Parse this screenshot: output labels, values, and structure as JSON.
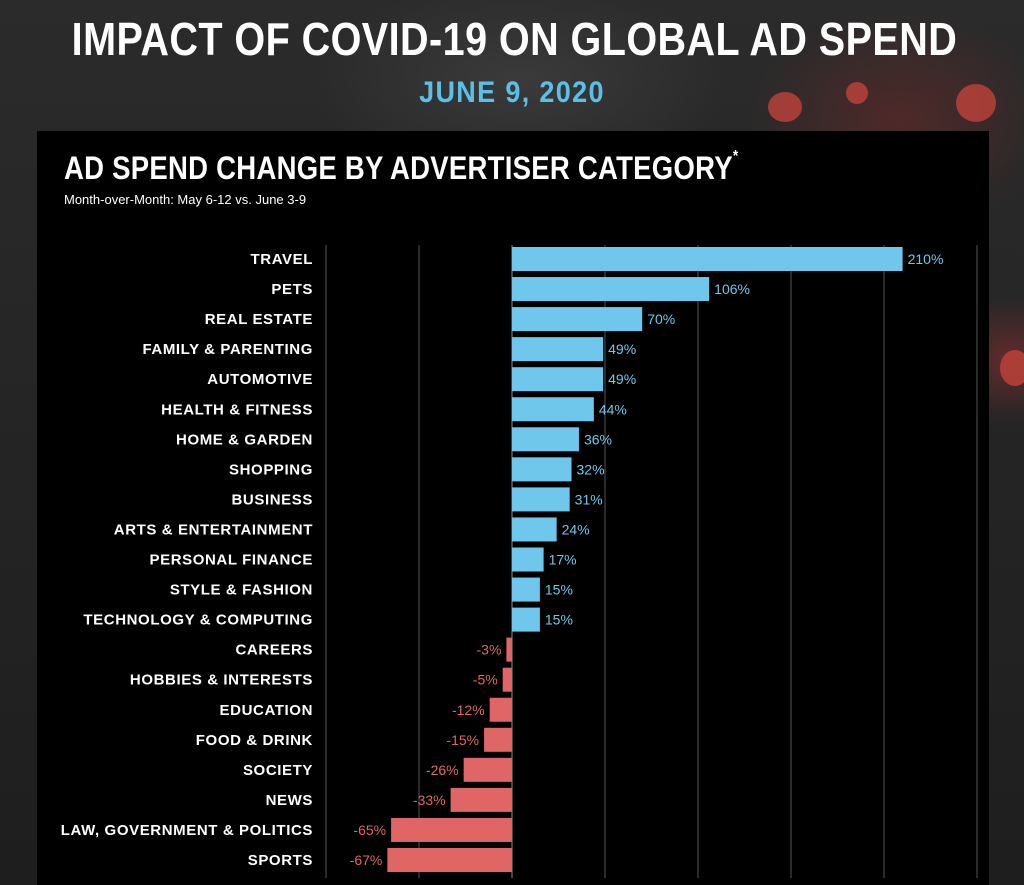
{
  "header": {
    "title": "IMPACT OF COVID-19 ON GLOBAL AD SPEND",
    "date": "JUNE 9, 2020"
  },
  "colors": {
    "positive": "#6fc8ec",
    "negative": "#e06666",
    "title_accent": "#5bc0e8",
    "background": "#000000",
    "gridline": "#555555"
  },
  "chart_data": {
    "type": "bar",
    "orientation": "horizontal",
    "title": "AD SPEND CHANGE BY ADVERTISER CATEGORY",
    "title_mark": "*",
    "subtitle": "Month-over-Month: May 6-12 vs. June 3-9",
    "categories": [
      "TRAVEL",
      "PETS",
      "REAL ESTATE",
      "FAMILY & PARENTING",
      "AUTOMOTIVE",
      "HEALTH & FITNESS",
      "HOME & GARDEN",
      "SHOPPING",
      "BUSINESS",
      "ARTS & ENTERTAINMENT",
      "PERSONAL FINANCE",
      "STYLE & FASHION",
      "TECHNOLOGY & COMPUTING",
      "CAREERS",
      "HOBBIES & INTERESTS",
      "EDUCATION",
      "FOOD & DRINK",
      "SOCIETY",
      "NEWS",
      "LAW, GOVERNMENT & POLITICS",
      "SPORTS"
    ],
    "values": [
      210,
      106,
      70,
      49,
      49,
      44,
      36,
      32,
      31,
      24,
      17,
      15,
      15,
      -3,
      -5,
      -12,
      -15,
      -26,
      -33,
      -65,
      -67
    ],
    "value_labels": [
      "210%",
      "106%",
      "70%",
      "49%",
      "49%",
      "44%",
      "36%",
      "32%",
      "31%",
      "24%",
      "17%",
      "15%",
      "15%",
      "-3%",
      "-5%",
      "-12%",
      "-15%",
      "-26%",
      "-33%",
      "-65%",
      "-67%"
    ],
    "unit": "%",
    "xlim": [
      -100,
      250
    ],
    "gridlines_at": [
      -100,
      -50,
      0,
      50,
      100,
      150,
      200,
      250
    ],
    "grid": true,
    "legend": "none"
  }
}
